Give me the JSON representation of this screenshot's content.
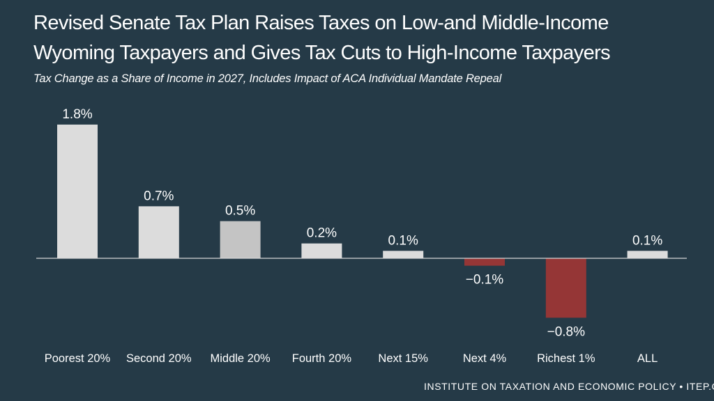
{
  "title_lines": [
    "Revised Senate Tax Plan Raises Taxes on Low-and Middle-Income",
    "Wyoming Taxpayers and Gives Tax Cuts to High-Income Taxpayers"
  ],
  "subtitle": "Tax Change as a Share of Income in 2027, Includes Impact of ACA Individual Mandate Repeal",
  "footer": "INSTITUTE ON TAXATION AND ECONOMIC POLICY • ITEP.OR",
  "colors": {
    "background": "#253a47",
    "positive": "#dcdcdc",
    "middle": "#c4c4c4",
    "negative": "#953636",
    "baseline": "#d8d8d8"
  },
  "chart_data": {
    "type": "bar",
    "title": "Revised Senate Tax Plan Raises Taxes on Low-and Middle-Income Wyoming Taxpayers and Gives Tax Cuts to High-Income Taxpayers",
    "subtitle": "Tax Change as a Share of Income in 2027, Includes Impact of ACA Individual Mandate Repeal",
    "xlabel": "",
    "ylabel": "",
    "ylim": [
      -0.8,
      1.8
    ],
    "categories": [
      "Poorest 20%",
      "Second 20%",
      "Middle 20%",
      "Fourth 20%",
      "Next 15%",
      "Next 4%",
      "Richest 1%",
      "ALL"
    ],
    "values": [
      1.8,
      0.7,
      0.5,
      0.2,
      0.1,
      -0.1,
      -0.8,
      0.1
    ],
    "value_labels": [
      "1.8%",
      "0.7%",
      "0.5%",
      "0.2%",
      "0.1%",
      "−0.1%",
      "−0.8%",
      "0.1%"
    ]
  }
}
